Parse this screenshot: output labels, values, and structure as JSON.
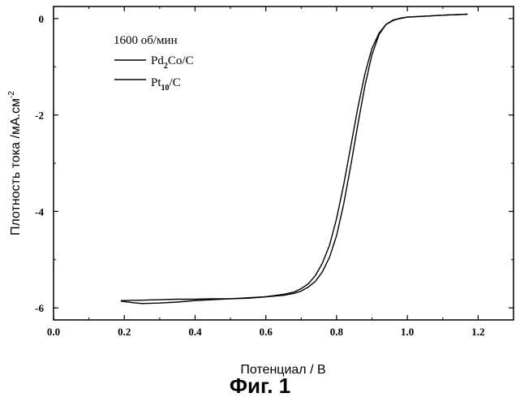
{
  "chart_data": {
    "type": "line",
    "xlabel": "Потенциал / В",
    "ylabel": "Плотность тока /мА.см",
    "ylabel_superscript": "-2",
    "xlim": [
      0.0,
      1.3
    ],
    "ylim": [
      -6.25,
      0.25
    ],
    "x_ticks": [
      0.0,
      0.2,
      0.4,
      0.6,
      0.8,
      1.0,
      1.2
    ],
    "x_tick_labels": [
      "0.0",
      "0.2",
      "0.4",
      "0.6",
      "0.8",
      "1.0",
      "1.2"
    ],
    "y_ticks": [
      0,
      -2,
      -4,
      -6
    ],
    "y_tick_labels": [
      "0",
      "-2",
      "-4",
      "-6"
    ],
    "grid": false,
    "legend_title": "1600 об/мин",
    "legend_position": "top-left",
    "series": [
      {
        "name": "Pd2Co/C",
        "label_parts": [
          "Pd",
          "2",
          "Co/C"
        ],
        "x": [
          0.19,
          0.25,
          0.3,
          0.35,
          0.4,
          0.45,
          0.5,
          0.55,
          0.6,
          0.65,
          0.68,
          0.7,
          0.72,
          0.74,
          0.76,
          0.78,
          0.8,
          0.82,
          0.84,
          0.86,
          0.88,
          0.9,
          0.92,
          0.94,
          0.96,
          0.98,
          1.0,
          1.05,
          1.1,
          1.17
        ],
        "y": [
          -5.85,
          -5.84,
          -5.83,
          -5.82,
          -5.82,
          -5.81,
          -5.81,
          -5.79,
          -5.77,
          -5.72,
          -5.67,
          -5.6,
          -5.5,
          -5.33,
          -5.07,
          -4.7,
          -4.15,
          -3.45,
          -2.65,
          -1.85,
          -1.15,
          -0.62,
          -0.3,
          -0.12,
          -0.04,
          0.01,
          0.03,
          0.05,
          0.07,
          0.09
        ]
      },
      {
        "name": "Pt10/C",
        "label_parts": [
          "Pt",
          "10",
          "/C"
        ],
        "x": [
          0.19,
          0.22,
          0.25,
          0.3,
          0.35,
          0.4,
          0.45,
          0.5,
          0.55,
          0.6,
          0.65,
          0.68,
          0.7,
          0.72,
          0.74,
          0.76,
          0.78,
          0.8,
          0.82,
          0.84,
          0.86,
          0.88,
          0.9,
          0.92,
          0.94,
          0.96,
          0.98,
          1.0,
          1.05,
          1.1,
          1.17
        ],
        "y": [
          -5.86,
          -5.89,
          -5.91,
          -5.9,
          -5.88,
          -5.85,
          -5.83,
          -5.81,
          -5.8,
          -5.77,
          -5.74,
          -5.7,
          -5.65,
          -5.57,
          -5.45,
          -5.25,
          -4.95,
          -4.5,
          -3.85,
          -3.05,
          -2.2,
          -1.4,
          -0.75,
          -0.33,
          -0.12,
          -0.03,
          0.0,
          0.03,
          0.05,
          0.07,
          0.09
        ]
      }
    ]
  },
  "caption": "Фиг. 1"
}
